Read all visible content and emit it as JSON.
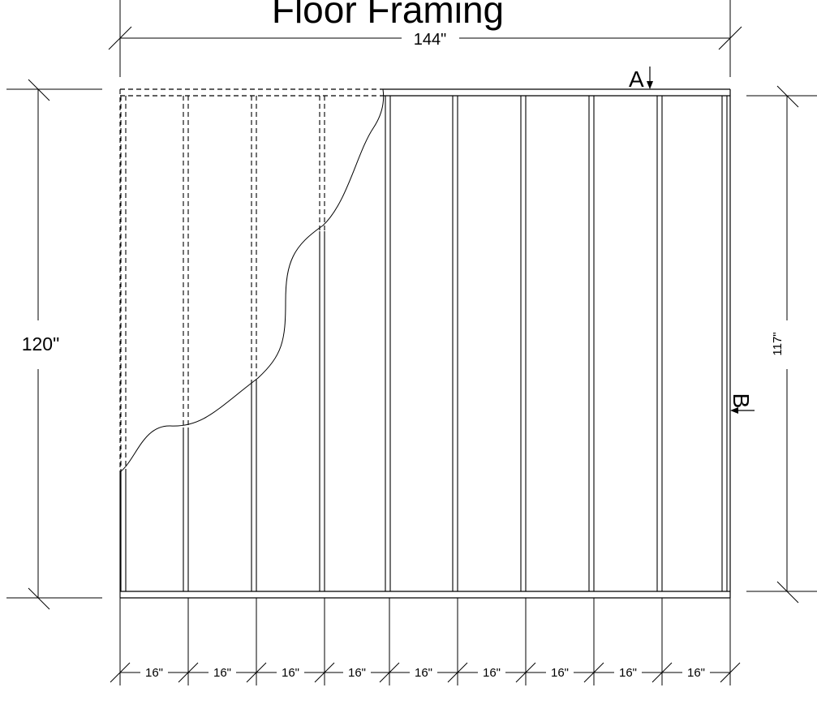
{
  "diagram": {
    "title": "Floor Framing",
    "dimensions": {
      "overall_width": "144\"",
      "overall_length": "120\"",
      "joist_length": "117\"",
      "joist_spacing": [
        "16\"",
        "16\"",
        "16\"",
        "16\"",
        "16\"",
        "16\"",
        "16\"",
        "16\"",
        "16\""
      ]
    },
    "section_markers": {
      "a": "A",
      "b": "B"
    },
    "colors": {
      "line": "#000000",
      "background": "#ffffff"
    }
  }
}
